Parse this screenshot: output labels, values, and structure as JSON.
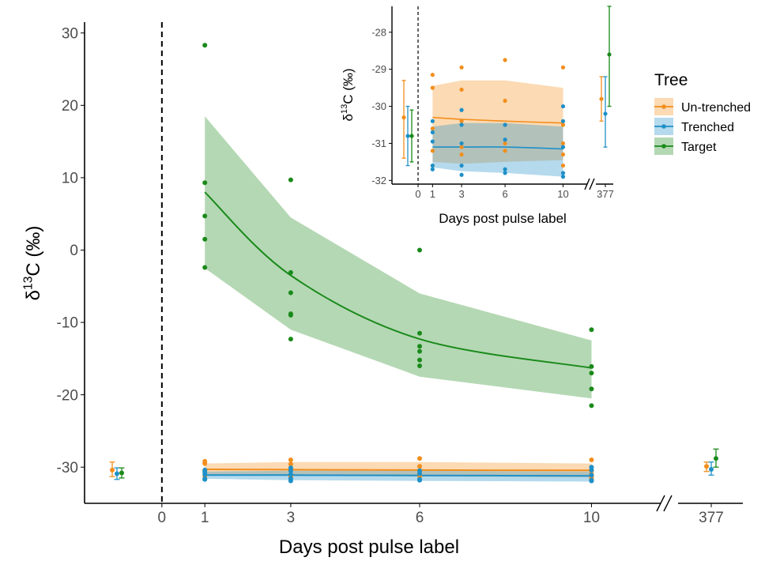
{
  "chart_data": {
    "type": "scatter",
    "xlabel": "Days post pulse label",
    "ylabel_html": "δ13C (‰)",
    "ylabel_parts": {
      "delta": "δ",
      "sup": "13",
      "rest": "C (‰)"
    },
    "legend": {
      "title": "Tree",
      "position": "right",
      "entries": [
        {
          "name": "Un-trenched",
          "color": "#F28E1C"
        },
        {
          "name": "Trenched",
          "color": "#1E90C8"
        },
        {
          "name": "Target",
          "color": "#1A8A1A"
        }
      ]
    },
    "axis_break_label": "//",
    "main": {
      "xlim": [
        -1.8,
        11.5
      ],
      "ylim": [
        -35,
        31.5
      ],
      "xticks": [
        0,
        1,
        3,
        6,
        10
      ],
      "late_tick": 377,
      "yticks": [
        -30,
        -20,
        -10,
        0,
        10,
        20,
        30
      ],
      "pre_label_point": [
        {
          "series": "Un-trenched",
          "y": -30.4,
          "lo": -31.3,
          "hi": -29.3
        },
        {
          "series": "Trenched",
          "y": -30.9,
          "lo": -31.7,
          "hi": -30.1
        },
        {
          "series": "Target",
          "y": -30.8,
          "lo": -31.5,
          "hi": -30.1
        }
      ],
      "day377_point": [
        {
          "series": "Un-trenched",
          "y": -29.9,
          "lo": -30.6,
          "hi": -29.3
        },
        {
          "series": "Trenched",
          "y": -30.3,
          "lo": -31.1,
          "hi": -29.3
        },
        {
          "series": "Target",
          "y": -28.8,
          "lo": -30.0,
          "hi": -27.5
        }
      ],
      "points": [
        {
          "series": "Target",
          "x": 1,
          "ys": [
            28.3,
            9.3,
            4.7,
            1.5,
            -2.4
          ]
        },
        {
          "series": "Target",
          "x": 3,
          "ys": [
            9.7,
            -3.1,
            -5.9,
            -8.8,
            -9.0,
            -12.3
          ]
        },
        {
          "series": "Target",
          "x": 6,
          "ys": [
            0.0,
            -11.5,
            -13.3,
            -14.0,
            -15.2,
            -16.0
          ]
        },
        {
          "series": "Target",
          "x": 10,
          "ys": [
            -11.0,
            -16.1,
            -17.0,
            -19.2,
            -21.5
          ]
        },
        {
          "series": "Un-trenched",
          "x": 1,
          "ys": [
            -29.2,
            -29.5,
            -30.5,
            -31.2,
            -31.6
          ]
        },
        {
          "series": "Un-trenched",
          "x": 3,
          "ys": [
            -29.0,
            -29.6,
            -30.4,
            -31.2,
            -31.4
          ]
        },
        {
          "series": "Un-trenched",
          "x": 6,
          "ys": [
            -28.8,
            -29.9,
            -30.5,
            -31.0,
            -31.3
          ]
        },
        {
          "series": "Un-trenched",
          "x": 10,
          "ys": [
            -29.0,
            -30.5,
            -31.0,
            -31.3,
            -31.6
          ]
        },
        {
          "series": "Trenched",
          "x": 1,
          "ys": [
            -30.4,
            -30.7,
            -31.0,
            -31.6,
            -31.7
          ]
        },
        {
          "series": "Trenched",
          "x": 3,
          "ys": [
            -30.1,
            -30.5,
            -31.0,
            -31.6,
            -31.9
          ]
        },
        {
          "series": "Trenched",
          "x": 6,
          "ys": [
            -30.5,
            -30.9,
            -31.7,
            -31.8
          ]
        },
        {
          "series": "Trenched",
          "x": 10,
          "ys": [
            -30.0,
            -30.4,
            -31.1,
            -31.8,
            -31.9
          ]
        }
      ],
      "fits": [
        {
          "series": "Target",
          "x": [
            1,
            3,
            6,
            10
          ],
          "y": [
            8.0,
            -3.5,
            -12.3,
            -16.3
          ],
          "band_hi": [
            18.5,
            4.5,
            -6.0,
            -12.5
          ],
          "band_lo": [
            -2.5,
            -11.0,
            -17.5,
            -20.5
          ]
        },
        {
          "series": "Un-trenched",
          "x": [
            1,
            3,
            6,
            10
          ],
          "y": [
            -30.3,
            -30.35,
            -30.4,
            -30.45
          ],
          "band_hi": [
            -29.5,
            -29.3,
            -29.3,
            -29.5
          ],
          "band_lo": [
            -31.0,
            -31.2,
            -31.3,
            -31.4
          ]
        },
        {
          "series": "Trenched",
          "x": [
            1,
            3,
            6,
            10
          ],
          "y": [
            -31.1,
            -31.1,
            -31.15,
            -31.2
          ],
          "band_hi": [
            -30.6,
            -30.5,
            -30.5,
            -30.6
          ],
          "band_lo": [
            -31.6,
            -31.8,
            -31.9,
            -32.0
          ]
        }
      ]
    },
    "inset": {
      "xlim": [
        -1.8,
        11.5
      ],
      "ylim": [
        -32.1,
        -27.3
      ],
      "xticks": [
        0,
        1,
        3,
        6,
        10
      ],
      "late_tick": 377,
      "yticks": [
        -32,
        -31,
        -30,
        -29,
        -28
      ],
      "pre_label_point": [
        {
          "series": "Un-trenched",
          "y": -30.3,
          "lo": -31.4,
          "hi": -29.3
        },
        {
          "series": "Trenched",
          "y": -30.8,
          "lo": -31.6,
          "hi": -30.0
        },
        {
          "series": "Target",
          "y": -30.8,
          "lo": -31.5,
          "hi": -30.1
        }
      ],
      "day377_point": [
        {
          "series": "Un-trenched",
          "y": -29.8,
          "lo": -30.4,
          "hi": -29.2
        },
        {
          "series": "Trenched",
          "y": -30.2,
          "lo": -31.1,
          "hi": -29.2
        },
        {
          "series": "Target",
          "y": -28.6,
          "lo": -30.0,
          "hi": -27.3
        }
      ],
      "points": [
        {
          "series": "Un-trenched",
          "x": 1,
          "ys": [
            -29.15,
            -29.5,
            -30.6,
            -31.2,
            -31.6
          ]
        },
        {
          "series": "Un-trenched",
          "x": 3,
          "ys": [
            -28.95,
            -29.55,
            -30.4,
            -31.1,
            -31.3
          ]
        },
        {
          "series": "Un-trenched",
          "x": 6,
          "ys": [
            -28.75,
            -29.85,
            -30.5,
            -31.0,
            -31.2
          ]
        },
        {
          "series": "Un-trenched",
          "x": 10,
          "ys": [
            -28.95,
            -30.5,
            -31.0,
            -31.3,
            -31.6
          ]
        },
        {
          "series": "Trenched",
          "x": 1,
          "ys": [
            -30.4,
            -30.7,
            -30.95,
            -31.6,
            -31.7
          ]
        },
        {
          "series": "Trenched",
          "x": 3,
          "ys": [
            -30.1,
            -30.5,
            -31.0,
            -31.6,
            -31.85
          ]
        },
        {
          "series": "Trenched",
          "x": 6,
          "ys": [
            -30.5,
            -30.9,
            -31.7,
            -31.8
          ]
        },
        {
          "series": "Trenched",
          "x": 10,
          "ys": [
            -30.0,
            -30.4,
            -31.1,
            -31.8,
            -31.9
          ]
        }
      ],
      "fits": [
        {
          "series": "Un-trenched",
          "x": [
            1,
            3,
            6,
            10
          ],
          "y": [
            -30.3,
            -30.35,
            -30.4,
            -30.45
          ],
          "band_hi": [
            -29.45,
            -29.3,
            -29.3,
            -29.5
          ],
          "band_lo": [
            -31.5,
            -31.55,
            -31.5,
            -31.45
          ]
        },
        {
          "series": "Trenched",
          "x": [
            1,
            3,
            6,
            10
          ],
          "y": [
            -31.1,
            -31.1,
            -31.1,
            -31.15
          ],
          "band_hi": [
            -30.55,
            -30.45,
            -30.45,
            -30.55
          ],
          "band_lo": [
            -31.65,
            -31.75,
            -31.8,
            -31.9
          ]
        }
      ]
    }
  }
}
